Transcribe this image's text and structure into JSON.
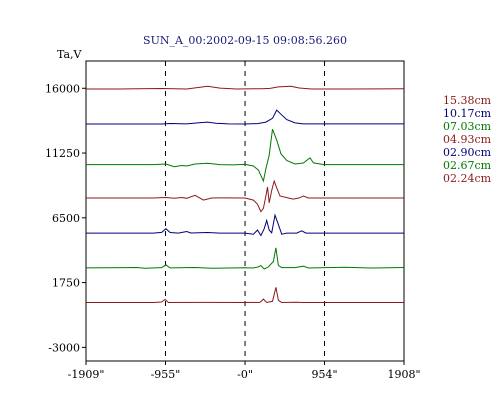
{
  "chart_data": {
    "type": "line",
    "title": "SUN_A_00:2002-09-15 09:08:56.260",
    "ylabel": "Ta,V",
    "x_ticks": [
      "-1909\"",
      "-955\"",
      "-0\"",
      "954\"",
      "1908\""
    ],
    "x_values": [
      -1909,
      -955,
      0,
      954,
      1908
    ],
    "xlim": [
      -1909,
      1908
    ],
    "y_ticks": [
      "16000",
      "11250",
      "6500",
      "1750",
      "-3000"
    ],
    "y_values": [
      16000,
      11250,
      6500,
      1750,
      -3000
    ],
    "ylim": [
      -4000,
      18000
    ],
    "vertical_gridlines": [
      -955,
      0,
      954
    ],
    "grid": false,
    "legend_position": "right",
    "series": [
      {
        "name": "15.38cm",
        "color": "#8b1a1a",
        "baseline": 15950,
        "points": [
          [
            -1909,
            15950
          ],
          [
            -1500,
            15950
          ],
          [
            -1000,
            15980
          ],
          [
            -700,
            15950
          ],
          [
            -450,
            16150
          ],
          [
            -300,
            16010
          ],
          [
            -100,
            15950
          ],
          [
            200,
            15970
          ],
          [
            300,
            15990
          ],
          [
            400,
            16100
          ],
          [
            550,
            16150
          ],
          [
            650,
            16020
          ],
          [
            800,
            15950
          ],
          [
            1200,
            15950
          ],
          [
            1908,
            15960
          ]
        ]
      },
      {
        "name": "10.17cm",
        "color": "#00007a",
        "baseline": 13380,
        "points": [
          [
            -1909,
            13380
          ],
          [
            -1000,
            13380
          ],
          [
            -900,
            13420
          ],
          [
            -700,
            13390
          ],
          [
            -550,
            13470
          ],
          [
            -450,
            13520
          ],
          [
            -350,
            13430
          ],
          [
            -200,
            13390
          ],
          [
            0,
            13380
          ],
          [
            150,
            13410
          ],
          [
            250,
            13520
          ],
          [
            330,
            13800
          ],
          [
            380,
            14400
          ],
          [
            430,
            14100
          ],
          [
            500,
            13700
          ],
          [
            600,
            13460
          ],
          [
            700,
            13390
          ],
          [
            1908,
            13390
          ]
        ]
      },
      {
        "name": "07.03cm",
        "color": "#007a00",
        "baseline": 10400,
        "points": [
          [
            -1909,
            10400
          ],
          [
            -1100,
            10400
          ],
          [
            -950,
            10450
          ],
          [
            -850,
            10250
          ],
          [
            -760,
            10340
          ],
          [
            -700,
            10300
          ],
          [
            -600,
            10450
          ],
          [
            -450,
            10500
          ],
          [
            -300,
            10400
          ],
          [
            -150,
            10380
          ],
          [
            0,
            10420
          ],
          [
            100,
            10300
          ],
          [
            160,
            10000
          ],
          [
            220,
            9200
          ],
          [
            250,
            10100
          ],
          [
            290,
            11100
          ],
          [
            330,
            13000
          ],
          [
            380,
            12200
          ],
          [
            430,
            11200
          ],
          [
            500,
            10700
          ],
          [
            600,
            10450
          ],
          [
            700,
            10520
          ],
          [
            780,
            10900
          ],
          [
            820,
            10530
          ],
          [
            950,
            10400
          ],
          [
            1908,
            10400
          ]
        ]
      },
      {
        "name": "04.93cm",
        "color": "#8b1a1a",
        "baseline": 7950,
        "points": [
          [
            -1909,
            7950
          ],
          [
            -1100,
            7950
          ],
          [
            -950,
            7990
          ],
          [
            -850,
            7930
          ],
          [
            -760,
            7990
          ],
          [
            -700,
            7930
          ],
          [
            -600,
            8150
          ],
          [
            -500,
            7800
          ],
          [
            -400,
            7950
          ],
          [
            -300,
            7960
          ],
          [
            0,
            7950
          ],
          [
            100,
            7800
          ],
          [
            150,
            7500
          ],
          [
            190,
            6950
          ],
          [
            220,
            7200
          ],
          [
            250,
            8100
          ],
          [
            270,
            8750
          ],
          [
            290,
            7600
          ],
          [
            320,
            8500
          ],
          [
            350,
            9200
          ],
          [
            380,
            8700
          ],
          [
            420,
            8100
          ],
          [
            520,
            7950
          ],
          [
            580,
            7870
          ],
          [
            650,
            7960
          ],
          [
            700,
            8100
          ],
          [
            760,
            7950
          ],
          [
            1908,
            7950
          ]
        ]
      },
      {
        "name": "02.90cm",
        "color": "#00007a",
        "baseline": 5380,
        "points": [
          [
            -1909,
            5380
          ],
          [
            -1100,
            5380
          ],
          [
            -1000,
            5430
          ],
          [
            -950,
            5700
          ],
          [
            -900,
            5420
          ],
          [
            -800,
            5380
          ],
          [
            -700,
            5500
          ],
          [
            -650,
            5390
          ],
          [
            -450,
            5420
          ],
          [
            -300,
            5380
          ],
          [
            0,
            5380
          ],
          [
            100,
            5300
          ],
          [
            150,
            5600
          ],
          [
            190,
            5200
          ],
          [
            230,
            5700
          ],
          [
            260,
            6300
          ],
          [
            290,
            5600
          ],
          [
            320,
            5400
          ],
          [
            360,
            6700
          ],
          [
            400,
            6000
          ],
          [
            440,
            5300
          ],
          [
            500,
            5380
          ],
          [
            620,
            5380
          ],
          [
            680,
            5550
          ],
          [
            730,
            5380
          ],
          [
            1908,
            5380
          ]
        ]
      },
      {
        "name": "02.67cm",
        "color": "#007a00",
        "baseline": 2830,
        "points": [
          [
            -1909,
            2830
          ],
          [
            -1300,
            2860
          ],
          [
            -1200,
            2800
          ],
          [
            -1000,
            2850
          ],
          [
            -950,
            3050
          ],
          [
            -900,
            2830
          ],
          [
            -600,
            2860
          ],
          [
            -400,
            2800
          ],
          [
            0,
            2840
          ],
          [
            100,
            2820
          ],
          [
            160,
            2900
          ],
          [
            190,
            3000
          ],
          [
            230,
            2750
          ],
          [
            280,
            2900
          ],
          [
            340,
            3300
          ],
          [
            370,
            4300
          ],
          [
            400,
            3000
          ],
          [
            440,
            2850
          ],
          [
            600,
            2850
          ],
          [
            700,
            2950
          ],
          [
            760,
            2820
          ],
          [
            1200,
            2870
          ],
          [
            1500,
            2820
          ],
          [
            1908,
            2860
          ]
        ]
      },
      {
        "name": "02.24cm",
        "color": "#8b1a1a",
        "baseline": 290,
        "points": [
          [
            -1909,
            290
          ],
          [
            -1100,
            290
          ],
          [
            -1000,
            330
          ],
          [
            -960,
            520
          ],
          [
            -920,
            290
          ],
          [
            -500,
            300
          ],
          [
            0,
            290
          ],
          [
            180,
            300
          ],
          [
            220,
            540
          ],
          [
            260,
            290
          ],
          [
            330,
            380
          ],
          [
            370,
            1400
          ],
          [
            400,
            450
          ],
          [
            440,
            290
          ],
          [
            620,
            310
          ],
          [
            700,
            290
          ],
          [
            1908,
            290
          ]
        ]
      }
    ]
  }
}
